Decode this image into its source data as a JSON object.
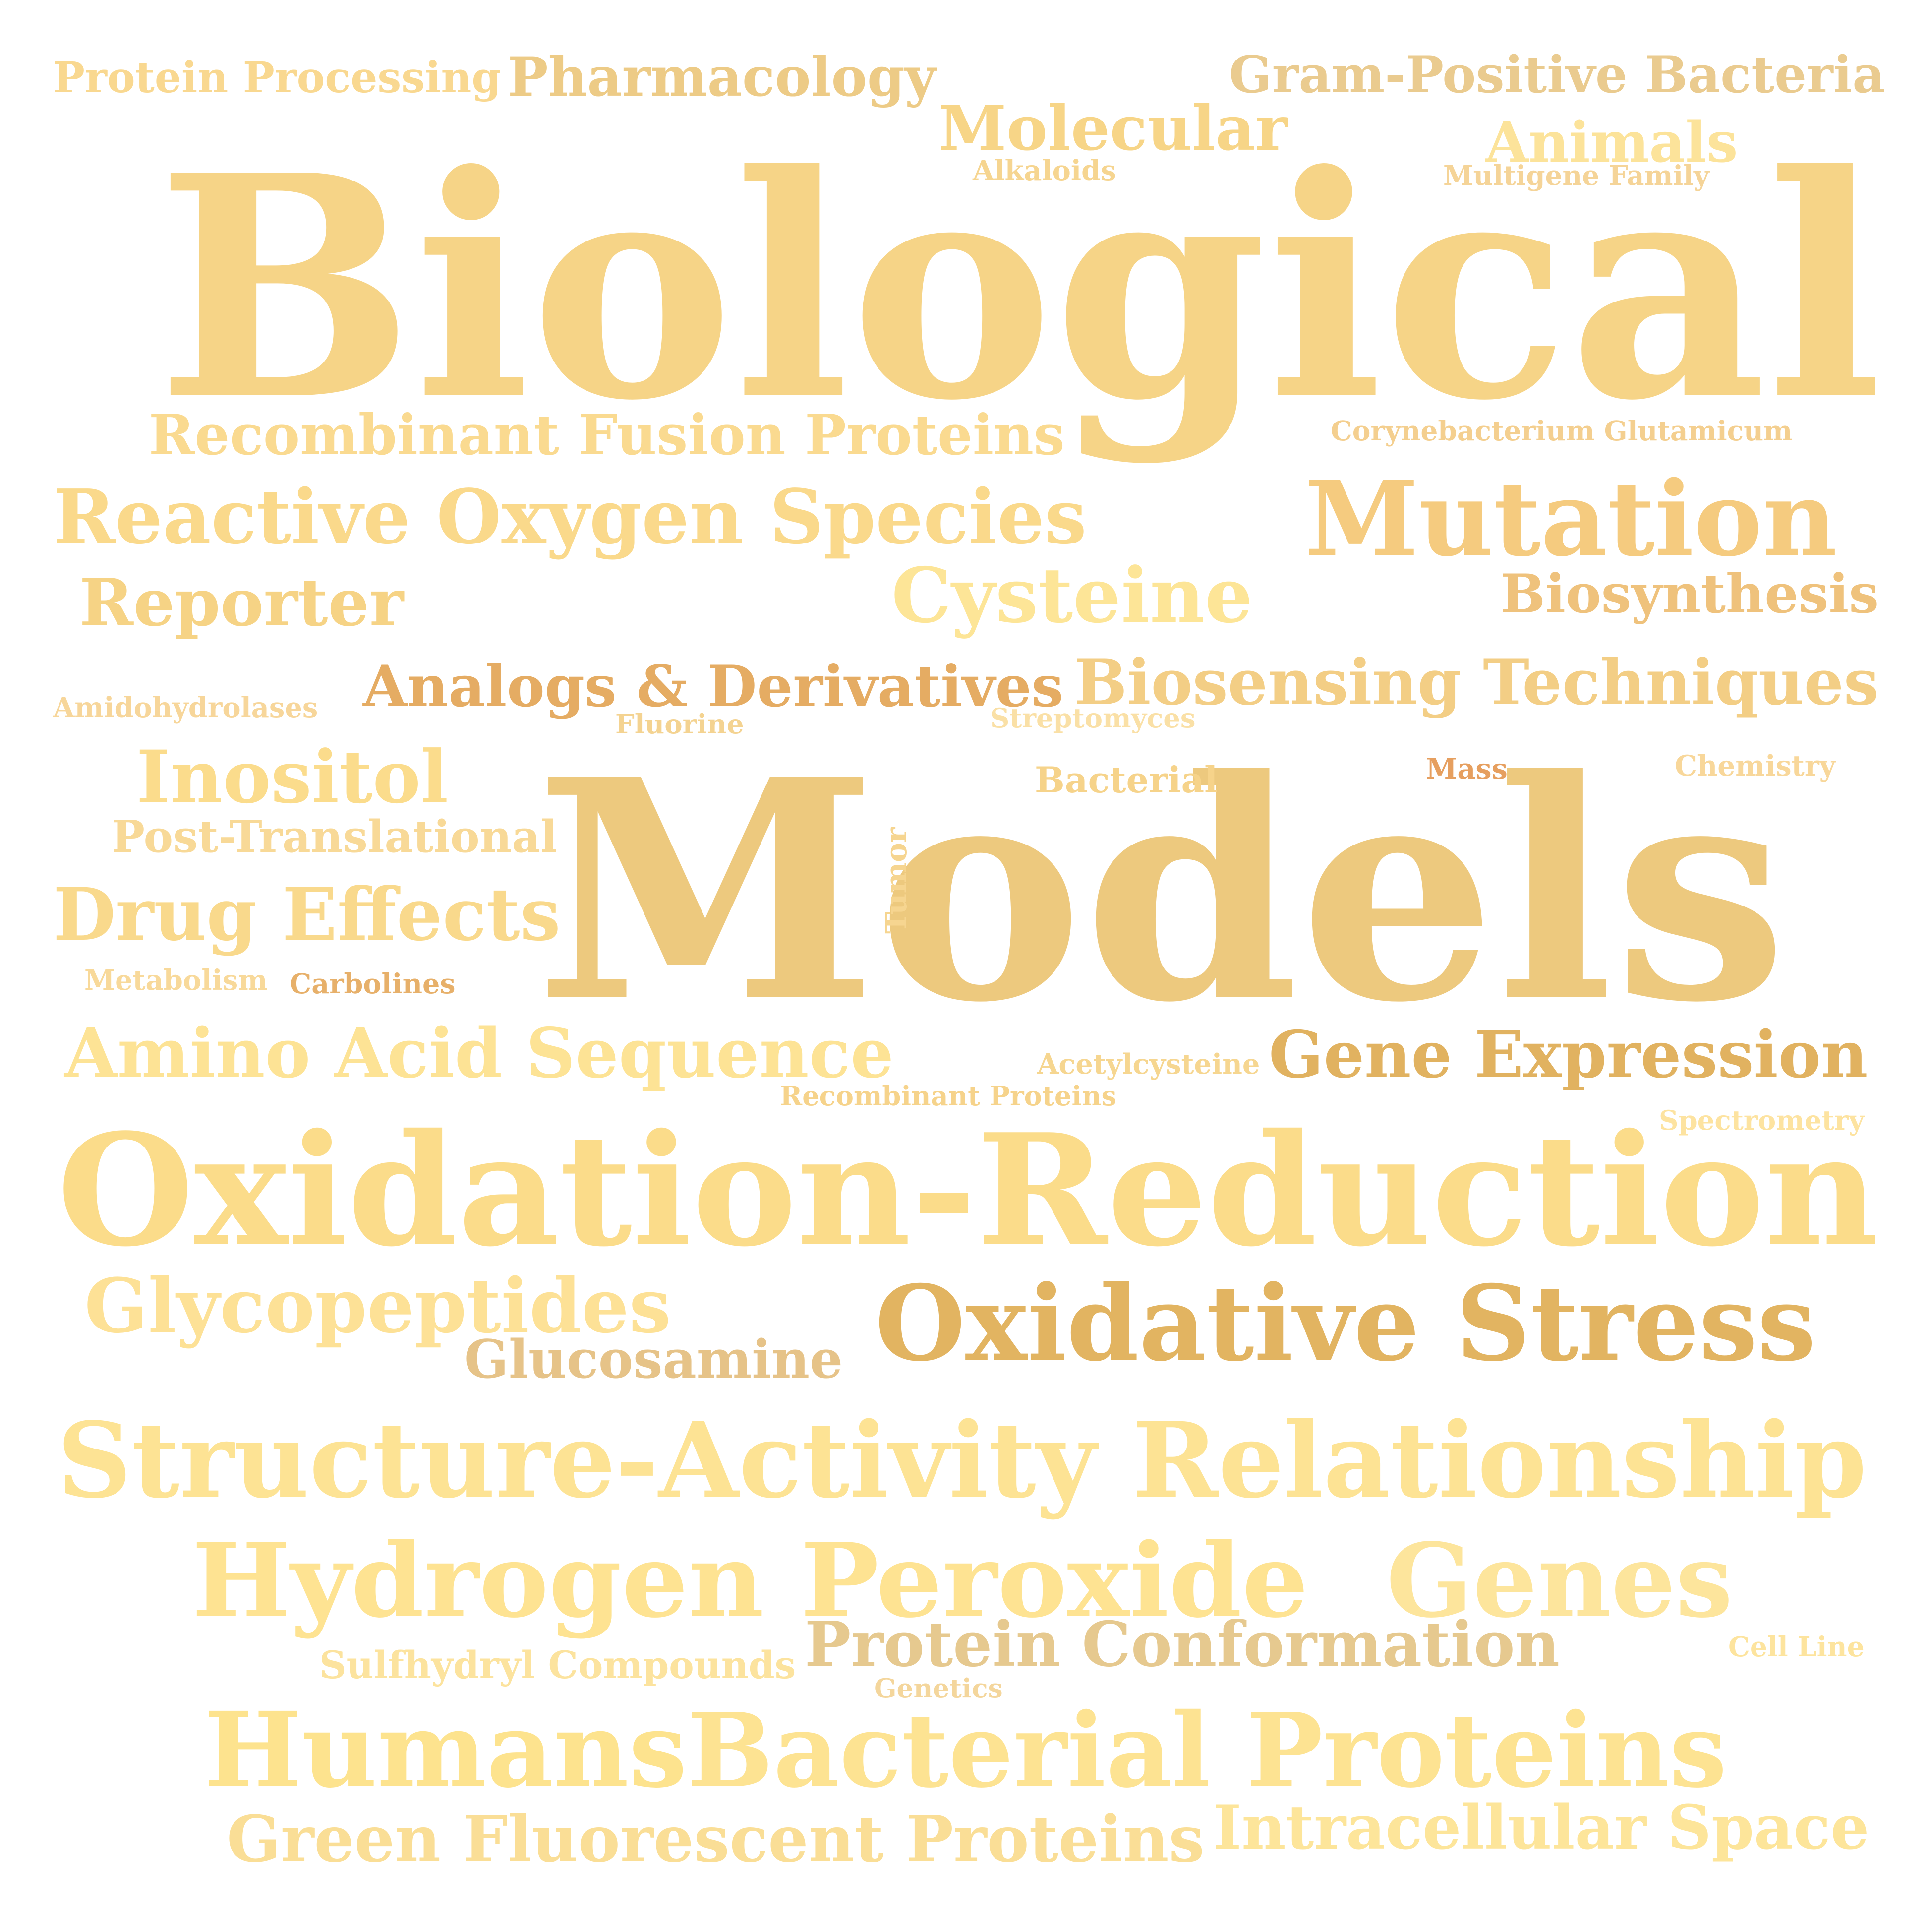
{
  "cloud": {
    "words": [
      {
        "id": "biological",
        "text": "Biological",
        "color": "#F6D487"
      },
      {
        "id": "models",
        "text": "Models",
        "color": "#EDC97E"
      },
      {
        "id": "oxidation-reduction",
        "text": "Oxidation-Reduction",
        "color": "#FBDC8A"
      },
      {
        "id": "structure-activity-relationship",
        "text": "Structure-Activity Relationship",
        "color": "#FDE394"
      },
      {
        "id": "hydrogen-peroxide",
        "text": "Hydrogen Peroxide",
        "color": "#FEE392"
      },
      {
        "id": "genes",
        "text": "Genes",
        "color": "#FDE59C"
      },
      {
        "id": "humans",
        "text": "Humans",
        "color": "#FDE38E"
      },
      {
        "id": "bacterial-proteins",
        "text": "Bacterial Proteins",
        "color": "#FDE392"
      },
      {
        "id": "green-fluorescent-proteins",
        "text": "Green Fluorescent Proteins",
        "color": "#FADE96"
      },
      {
        "id": "intracellular-space",
        "text": "Intracellular Space",
        "color": "#FDE59A"
      },
      {
        "id": "protein-conformation",
        "text": "Protein Conformation",
        "color": "#E6C98F"
      },
      {
        "id": "sulfhydryl-compounds",
        "text": "Sulfhydryl Compounds",
        "color": "#FCE39E"
      },
      {
        "id": "genetics",
        "text": "Genetics",
        "color": "#F4D69C"
      },
      {
        "id": "cell-line",
        "text": "Cell Line",
        "color": "#FDE49E"
      },
      {
        "id": "oxidative-stress",
        "text": "Oxidative Stress",
        "color": "#E2B461"
      },
      {
        "id": "glycopeptides",
        "text": "Glycopeptides",
        "color": "#FDE196"
      },
      {
        "id": "glucosamine",
        "text": "Glucosamine",
        "color": "#E6C388"
      },
      {
        "id": "amino-acid-sequence",
        "text": "Amino Acid Sequence",
        "color": "#FDE395"
      },
      {
        "id": "gene-expression",
        "text": "Gene Expression",
        "color": "#E1B260"
      },
      {
        "id": "acetylcysteine",
        "text": "Acetylcysteine",
        "color": "#F6D690"
      },
      {
        "id": "recombinant-proteins",
        "text": "Recombinant Proteins",
        "color": "#F6D38B"
      },
      {
        "id": "spectrometry",
        "text": "Spectrometry",
        "color": "#FDE3A0"
      },
      {
        "id": "drug-effects",
        "text": "Drug Effects",
        "color": "#F9D98C"
      },
      {
        "id": "metabolism",
        "text": "Metabolism",
        "color": "#F8D99A"
      },
      {
        "id": "carbolines",
        "text": "Carbolines",
        "color": "#E7B06A"
      },
      {
        "id": "inositol",
        "text": "Inositol",
        "color": "#FBDC8C"
      },
      {
        "id": "post-translational",
        "text": "Post-Translational",
        "color": "#F8D997"
      },
      {
        "id": "tumor",
        "text": "Tumor",
        "color": "#F6D590"
      },
      {
        "id": "bacterial",
        "text": "Bacterial",
        "color": "#F6D38A"
      },
      {
        "id": "mass",
        "text": "Mass",
        "color": "#E69F5F"
      },
      {
        "id": "chemistry",
        "text": "Chemistry",
        "color": "#F8D79A"
      },
      {
        "id": "amidohydrolases",
        "text": "Amidohydrolases",
        "color": "#F7D69A"
      },
      {
        "id": "analogs-derivatives",
        "text": "Analogs & Derivatives",
        "color": "#E5AC63"
      },
      {
        "id": "fluorine",
        "text": "Fluorine",
        "color": "#F4D391"
      },
      {
        "id": "streptomyces",
        "text": "Streptomyces",
        "color": "#FAE0A6"
      },
      {
        "id": "biosensing-techniques",
        "text": "Biosensing Techniques",
        "color": "#F3CE85"
      },
      {
        "id": "reporter",
        "text": "Reporter",
        "color": "#F6D385"
      },
      {
        "id": "cysteine",
        "text": "Cysteine",
        "color": "#FDE597"
      },
      {
        "id": "biosynthesis",
        "text": "Biosynthesis",
        "color": "#EFC27C"
      },
      {
        "id": "reactive-oxygen-species",
        "text": "Reactive Oxygen Species",
        "color": "#FAD98B"
      },
      {
        "id": "mutation",
        "text": "Mutation",
        "color": "#F5CB7F"
      },
      {
        "id": "recombinant-fusion-proteins",
        "text": "Recombinant Fusion Proteins",
        "color": "#FADA90"
      },
      {
        "id": "corynebacterium-glutamicum",
        "text": "Corynebacterium Glutamicum",
        "color": "#F4CF8F"
      },
      {
        "id": "protein-processing",
        "text": "Protein Processing",
        "color": "#F9D890"
      },
      {
        "id": "pharmacology",
        "text": "Pharmacology",
        "color": "#EDCB86"
      },
      {
        "id": "gram-positive-bacteria",
        "text": "Gram-Positive Bacteria",
        "color": "#EACB8F"
      },
      {
        "id": "molecular",
        "text": "Molecular",
        "color": "#F7D587"
      },
      {
        "id": "alkaloids",
        "text": "Alkaloids",
        "color": "#F6D590"
      },
      {
        "id": "animals",
        "text": "Animals",
        "color": "#FCE39A"
      },
      {
        "id": "multigene-family",
        "text": "Multigene Family",
        "color": "#F5D498"
      }
    ]
  }
}
